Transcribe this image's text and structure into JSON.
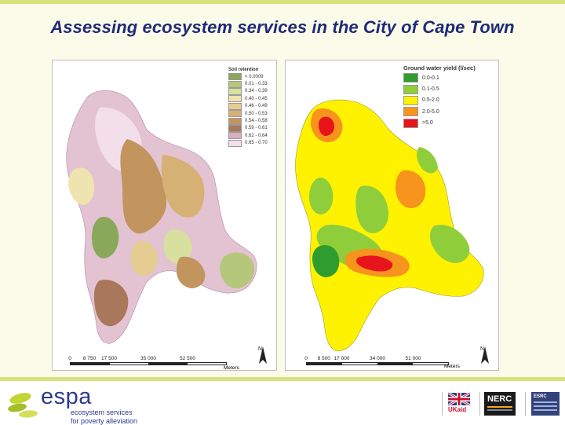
{
  "slide": {
    "title": "Assessing ecosystem services in the City of Cape Town"
  },
  "left_map": {
    "legend_title": "Soil retention",
    "classes": [
      {
        "label": "< 0.0009",
        "color": "#8aa85a"
      },
      {
        "label": "0.01 - 0.33",
        "color": "#b5c77a"
      },
      {
        "label": "0.34 - 0.39",
        "color": "#d8e0a0"
      },
      {
        "label": "0.40 - 0.45",
        "color": "#efe3b0"
      },
      {
        "label": "0.46 - 0.49",
        "color": "#e5cd92"
      },
      {
        "label": "0.50 - 0.53",
        "color": "#d6b176"
      },
      {
        "label": "0.54 - 0.58",
        "color": "#c2955f"
      },
      {
        "label": "0.59 - 0.61",
        "color": "#a9775a"
      },
      {
        "label": "0.62 - 0.64",
        "color": "#d8b0c0"
      },
      {
        "label": "0.65 - 0.70",
        "color": "#f3dfe9"
      }
    ],
    "scale_labels": [
      "0",
      "8 750",
      "17 500",
      "35 000",
      "52 500"
    ],
    "scale_unit": "Meters",
    "north": "N"
  },
  "right_map": {
    "legend_title": "Ground water yield (l/sec)",
    "classes": [
      {
        "label": "0.0-0.1",
        "color": "#2e9c2e"
      },
      {
        "label": "0.1-0.5",
        "color": "#8fce3a"
      },
      {
        "label": "0.5-2.0",
        "color": "#fff200"
      },
      {
        "label": "2.0-5.0",
        "color": "#f7941d"
      },
      {
        "label": ">5.0",
        "color": "#e8141b"
      }
    ],
    "scale_labels": [
      "0",
      "8 500",
      "17 000",
      "34 000",
      "51 000"
    ],
    "scale_unit": "Meters",
    "north": "N"
  },
  "footer": {
    "espa_name": "espa",
    "espa_line1": "ecosystem services",
    "espa_line2": "for poverty alleviation",
    "partners": [
      "UKaid",
      "NERC",
      "ESRC"
    ]
  }
}
